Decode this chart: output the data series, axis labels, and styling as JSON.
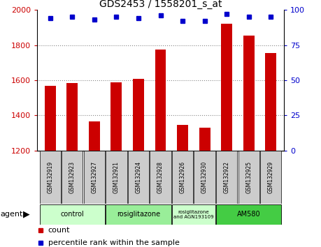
{
  "title": "GDS2453 / 1558201_s_at",
  "samples": [
    "GSM132919",
    "GSM132923",
    "GSM132927",
    "GSM132921",
    "GSM132924",
    "GSM132928",
    "GSM132926",
    "GSM132930",
    "GSM132922",
    "GSM132925",
    "GSM132929"
  ],
  "counts": [
    1570,
    1585,
    1365,
    1590,
    1610,
    1775,
    1345,
    1330,
    1920,
    1855,
    1755
  ],
  "percentiles": [
    94,
    95,
    93,
    95,
    94,
    96,
    92,
    92,
    97,
    95,
    95
  ],
  "ylim_left": [
    1200,
    2000
  ],
  "ylim_right": [
    0,
    100
  ],
  "yticks_left": [
    1200,
    1400,
    1600,
    1800,
    2000
  ],
  "yticks_right": [
    0,
    25,
    50,
    75,
    100
  ],
  "bar_color": "#cc0000",
  "dot_color": "#0000cc",
  "bar_width": 0.5,
  "groups": [
    {
      "label": "control",
      "start": 0,
      "end": 2,
      "color": "#ccffcc"
    },
    {
      "label": "rosiglitazone",
      "start": 3,
      "end": 5,
      "color": "#99ee99"
    },
    {
      "label": "rosiglitazone\nand AGN193109",
      "start": 6,
      "end": 7,
      "color": "#ccffcc"
    },
    {
      "label": "AM580",
      "start": 8,
      "end": 10,
      "color": "#44cc44"
    }
  ],
  "legend_count_color": "#cc0000",
  "legend_dot_color": "#0000cc",
  "background_color": "#ffffff",
  "grid_color": "#888888",
  "tick_label_color_left": "#cc0000",
  "tick_label_color_right": "#0000cc",
  "sample_box_color": "#cccccc"
}
